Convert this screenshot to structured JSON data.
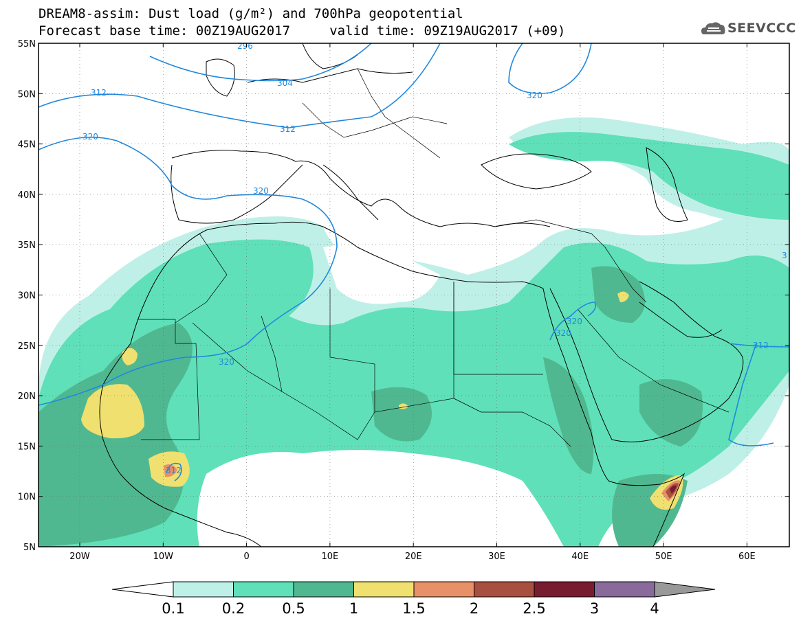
{
  "header": {
    "line1": "DREAM8-assim: Dust load (g/m²) and 700hPa geopotential",
    "line2": "Forecast base time: 00Z19AUG2017     valid time: 09Z19AUG2017 (+09)",
    "logo_text": "SEEVCCC"
  },
  "axes": {
    "lat_labels": [
      "55N",
      "50N",
      "45N",
      "40N",
      "35N",
      "30N",
      "25N",
      "20N",
      "15N",
      "10N",
      "5N"
    ],
    "lon_labels": [
      "20W",
      "10W",
      "0",
      "10E",
      "20E",
      "30E",
      "40E",
      "50E",
      "60E"
    ]
  },
  "contours": [
    {
      "label": "296"
    },
    {
      "label": "304"
    },
    {
      "label": "312"
    },
    {
      "label": "312"
    },
    {
      "label": "320"
    },
    {
      "label": "320"
    },
    {
      "label": "320"
    },
    {
      "label": "320"
    },
    {
      "label": "320"
    },
    {
      "label": "320"
    },
    {
      "label": "312"
    },
    {
      "label": "312"
    },
    {
      "label": "3"
    }
  ],
  "colorbar": {
    "labels": [
      "0.1",
      "0.2",
      "0.5",
      "1",
      "1.5",
      "2",
      "2.5",
      "3",
      "4"
    ],
    "colors": [
      "#bff0e8",
      "#5fe0b8",
      "#50b890",
      "#f0e070",
      "#e89068",
      "#a85040",
      "#781c30",
      "#8a6a9a"
    ],
    "low_color": "#ffffff",
    "high_color": "#999999"
  },
  "colors": {
    "light": "#bff0e8",
    "mid": "#5fe0b8",
    "dark": "#50b890",
    "yellow": "#f0e070",
    "orange": "#e89068",
    "brown": "#a85040",
    "maroon": "#781c30",
    "contour": "#2288dd"
  }
}
